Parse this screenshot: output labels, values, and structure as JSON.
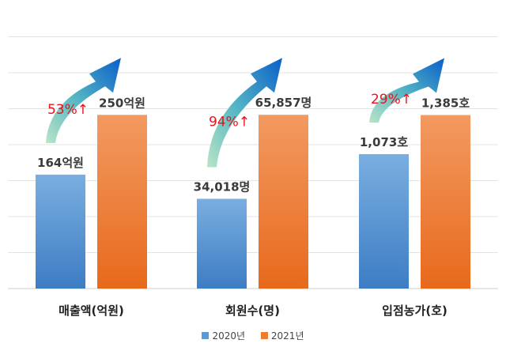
{
  "chart_data": {
    "type": "bar",
    "categories": [
      "매출액(억원)",
      "회원수(명)",
      "입점농가(호)"
    ],
    "series": [
      {
        "name": "2020년",
        "color": "#5b9bd5",
        "values": [
          164,
          34018,
          1073
        ]
      },
      {
        "name": "2021년",
        "color": "#ed7d31",
        "values": [
          250,
          65857,
          1385
        ]
      }
    ],
    "value_labels": [
      [
        "164억원",
        "34,018명",
        "1,073호"
      ],
      [
        "250억원",
        "65,857명",
        "1,385호"
      ]
    ],
    "growth_labels": [
      "53%↑",
      "94%↑",
      "29%↑"
    ],
    "growth_color": "#e8141c",
    "per_category_max": [
      330,
      86900,
      1830
    ],
    "grid": true,
    "legend_position": "bottom"
  }
}
